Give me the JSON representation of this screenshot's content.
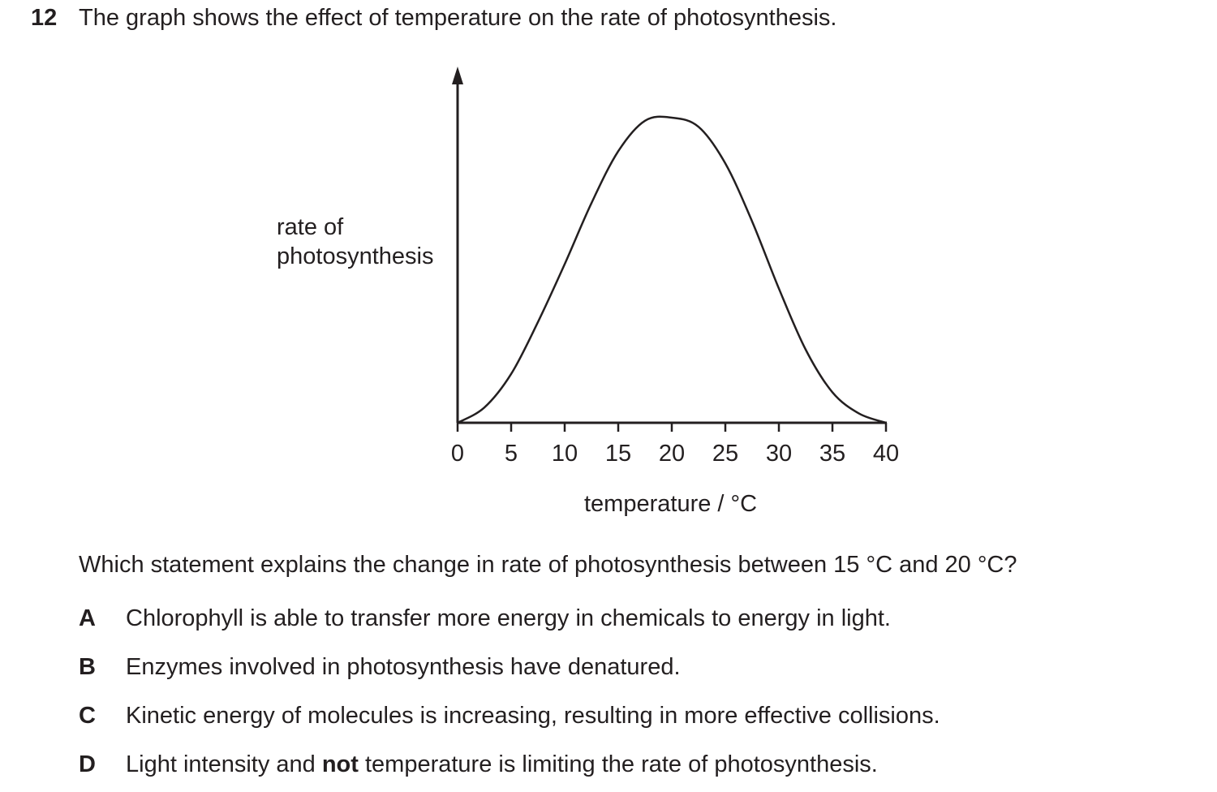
{
  "question": {
    "number": "12",
    "stem": "The graph shows the effect of temperature on the rate of photosynthesis.",
    "prompt": "Which statement explains the change in rate of photosynthesis between 15 °C and 20 °C?",
    "options": [
      {
        "letter": "A",
        "text": "Chlorophyll is able to transfer more energy in chemicals to energy in light."
      },
      {
        "letter": "B",
        "text": "Enzymes involved in photosynthesis have denatured."
      },
      {
        "letter": "C",
        "text": "Kinetic energy of molecules is increasing, resulting in more effective collisions."
      },
      {
        "letter": "D",
        "text_before": "Light intensity and ",
        "text_bold": "not",
        "text_after": " temperature is limiting the rate of photosynthesis."
      }
    ]
  },
  "chart_data": {
    "type": "line",
    "title": "",
    "xlabel": "temperature / °C",
    "ylabel_line1": "rate of",
    "ylabel_line2": "photosynthesis",
    "xlim": [
      0,
      40
    ],
    "ylim": [
      0,
      1.17
    ],
    "x_ticks": [
      0,
      5,
      10,
      15,
      20,
      25,
      30,
      35,
      40
    ],
    "y_ticks": [],
    "grid": false,
    "series": [
      {
        "x": [
          0,
          2.5,
          5,
          7.5,
          10,
          12.5,
          15,
          17.5,
          20,
          22.5,
          25,
          27.5,
          30,
          32.5,
          35,
          37.5,
          40
        ],
        "values": [
          0,
          0.05,
          0.16,
          0.33,
          0.52,
          0.72,
          0.89,
          0.99,
          1.0,
          0.97,
          0.85,
          0.66,
          0.44,
          0.24,
          0.1,
          0.03,
          0
        ]
      }
    ],
    "line_color": "#231f20"
  }
}
